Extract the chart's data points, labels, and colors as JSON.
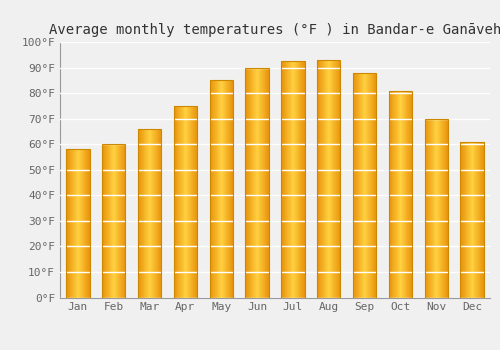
{
  "title": "Average monthly temperatures (°F ) in Bandar-e Ganāveh",
  "months": [
    "Jan",
    "Feb",
    "Mar",
    "Apr",
    "May",
    "Jun",
    "Jul",
    "Aug",
    "Sep",
    "Oct",
    "Nov",
    "Dec"
  ],
  "values": [
    58,
    60,
    66,
    75,
    85,
    90,
    92.5,
    93,
    88,
    81,
    70,
    61
  ],
  "ylim": [
    0,
    100
  ],
  "yticks": [
    0,
    10,
    20,
    30,
    40,
    50,
    60,
    70,
    80,
    90,
    100
  ],
  "ytick_labels": [
    "0°F",
    "10°F",
    "20°F",
    "30°F",
    "40°F",
    "50°F",
    "60°F",
    "70°F",
    "80°F",
    "90°F",
    "100°F"
  ],
  "bar_color_center": "#FFD040",
  "bar_color_edge": "#E8920A",
  "bar_border_color": "#CC8800",
  "background_color": "#f0f0f0",
  "plot_bg_color": "#f0f0f0",
  "grid_color": "#ffffff",
  "title_fontsize": 10,
  "tick_fontsize": 8,
  "font_family": "monospace"
}
